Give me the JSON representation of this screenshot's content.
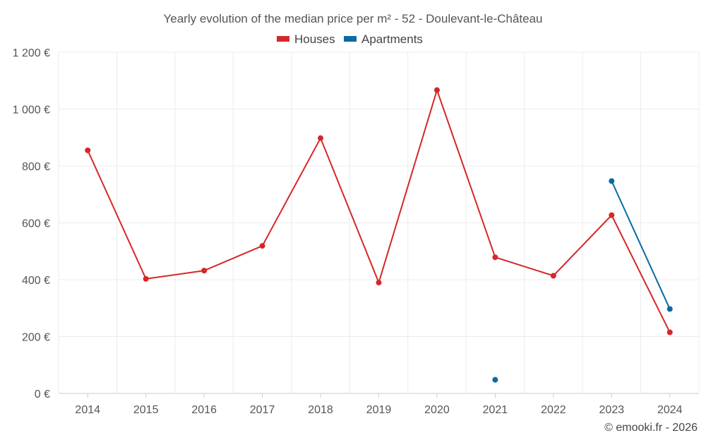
{
  "chart_data": {
    "type": "line",
    "title": "Yearly evolution of the median price per m² - 52 - Doulevant-le-Château",
    "categories": [
      "2014",
      "2015",
      "2016",
      "2017",
      "2018",
      "2019",
      "2020",
      "2021",
      "2022",
      "2023",
      "2024"
    ],
    "series": [
      {
        "name": "Houses",
        "color": "#d62728",
        "values": [
          855,
          403,
          432,
          519,
          898,
          390,
          1067,
          479,
          414,
          627,
          215
        ]
      },
      {
        "name": "Apartments",
        "color": "#0b6aa2",
        "values": [
          null,
          null,
          null,
          null,
          null,
          null,
          null,
          48,
          null,
          747,
          297
        ]
      }
    ],
    "ylim": [
      0,
      1200
    ],
    "yticks": [
      0,
      200,
      400,
      600,
      800,
      1000,
      1200
    ],
    "ytick_labels": [
      "0 €",
      "200 €",
      "400 €",
      "600 €",
      "800 €",
      "1 000 €",
      "1 200 €"
    ],
    "xlabel": "",
    "ylabel": "",
    "grid": true,
    "legend_position": "top-center"
  },
  "credit": "© emooki.fr - 2026"
}
